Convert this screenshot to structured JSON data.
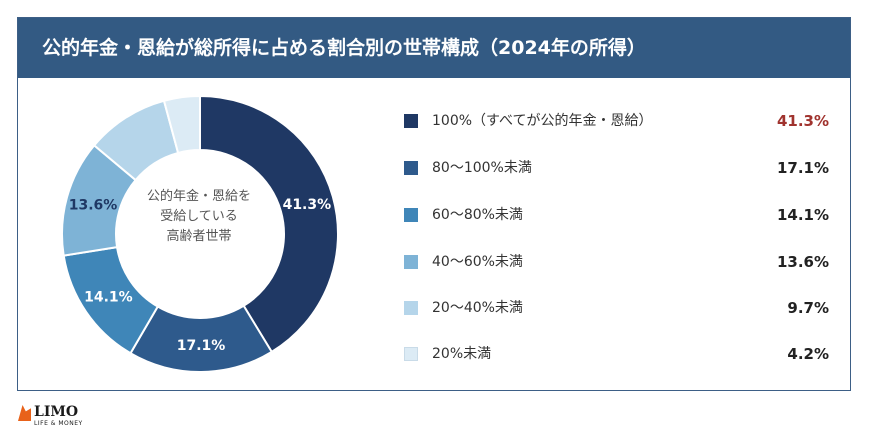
{
  "title": "公的年金・恩給が総所得に占める割合別の世帯構成（2024年の所得）",
  "center_label_lines": [
    "公的年金・恩給を",
    "受給している",
    "高齢者世帯"
  ],
  "chart_data": {
    "type": "pie",
    "categories": [
      "100%（すべてが公的年金・恩給）",
      "80〜100%未満",
      "60〜80%未満",
      "40〜60%未満",
      "20〜40%未満",
      "20%未満"
    ],
    "values": [
      41.3,
      17.1,
      14.1,
      13.6,
      9.7,
      4.2
    ],
    "value_labels": [
      "41.3%",
      "17.1%",
      "14.1%",
      "13.6%",
      "9.7%",
      "4.2%"
    ],
    "legend_values": [
      "41.3%",
      "17.1%",
      "14.1%",
      "13.6%",
      "9.7%",
      "4.2%"
    ],
    "colors": [
      "#1f3864",
      "#2e5a8c",
      "#3f86b8",
      "#7eb3d6",
      "#b5d5ea",
      "#dcebf5"
    ],
    "inner_label_colors": [
      "#ffffff",
      "#ffffff",
      "#ffffff",
      "#1f3864",
      "",
      ""
    ],
    "highlight_value_color": "#a0332e",
    "legend_placement": "right",
    "donut": true
  },
  "logo": {
    "text": "LIMO",
    "sub": "LIFE & MONEY"
  }
}
